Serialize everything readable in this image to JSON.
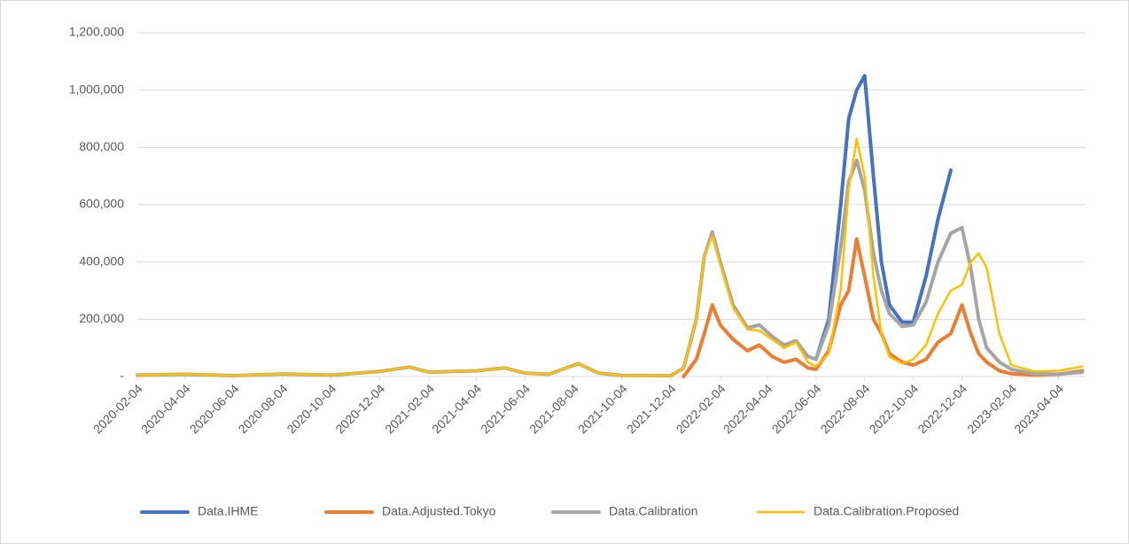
{
  "chart_data": {
    "type": "line",
    "x": [
      "2020-02-04",
      "2020-04-04",
      "2020-06-04",
      "2020-08-04",
      "2020-10-04",
      "2020-12-04",
      "2021-01-10",
      "2021-02-04",
      "2021-04-04",
      "2021-05-10",
      "2021-06-04",
      "2021-07-04",
      "2021-08-10",
      "2021-09-04",
      "2021-10-04",
      "2021-12-04",
      "2021-12-20",
      "2022-01-05",
      "2022-01-15",
      "2022-01-25",
      "2022-02-04",
      "2022-02-20",
      "2022-03-10",
      "2022-03-25",
      "2022-04-10",
      "2022-04-25",
      "2022-05-10",
      "2022-05-25",
      "2022-06-04",
      "2022-06-20",
      "2022-07-05",
      "2022-07-15",
      "2022-07-25",
      "2022-08-04",
      "2022-08-15",
      "2022-08-25",
      "2022-09-04",
      "2022-09-20",
      "2022-10-04",
      "2022-10-20",
      "2022-11-04",
      "2022-11-20",
      "2022-12-04",
      "2022-12-15",
      "2022-12-25",
      "2023-01-04",
      "2023-01-20",
      "2023-02-04",
      "2023-03-04",
      "2023-04-04",
      "2023-05-04"
    ],
    "series": [
      {
        "name": "Data.IHME",
        "color": "#4472c4",
        "width": 4,
        "values": [
          null,
          null,
          null,
          null,
          null,
          null,
          null,
          null,
          null,
          null,
          null,
          null,
          null,
          null,
          null,
          null,
          null,
          null,
          null,
          null,
          null,
          null,
          null,
          null,
          null,
          null,
          null,
          null,
          60000,
          200000,
          600000,
          900000,
          1000000,
          1050000,
          700000,
          400000,
          250000,
          190000,
          190000,
          350000,
          550000,
          720000,
          null,
          null,
          null,
          null,
          null,
          null,
          null,
          null,
          null
        ]
      },
      {
        "name": "Data.Adjusted.Tokyo",
        "color": "#ed7d31",
        "width": 4,
        "values": [
          null,
          null,
          null,
          null,
          null,
          null,
          null,
          null,
          null,
          null,
          null,
          null,
          null,
          null,
          null,
          null,
          0,
          60000,
          150000,
          250000,
          180000,
          130000,
          90000,
          110000,
          70000,
          50000,
          60000,
          30000,
          25000,
          90000,
          250000,
          300000,
          480000,
          350000,
          200000,
          150000,
          80000,
          50000,
          40000,
          60000,
          120000,
          150000,
          250000,
          150000,
          80000,
          50000,
          20000,
          10000,
          5000,
          8000,
          20000
        ]
      },
      {
        "name": "Data.Calibration",
        "color": "#a5a5a5",
        "width": 4,
        "values": [
          5000,
          8000,
          3000,
          9000,
          5000,
          18000,
          33000,
          15000,
          20000,
          30000,
          12000,
          8000,
          45000,
          12000,
          4000,
          3000,
          30000,
          200000,
          420000,
          505000,
          400000,
          250000,
          170000,
          180000,
          140000,
          110000,
          125000,
          70000,
          60000,
          180000,
          450000,
          680000,
          755000,
          650000,
          430000,
          300000,
          220000,
          175000,
          180000,
          260000,
          400000,
          500000,
          520000,
          380000,
          200000,
          100000,
          50000,
          25000,
          10000,
          8000,
          15000
        ]
      },
      {
        "name": "Data.Calibration.Proposed",
        "color": "#ffc000",
        "width": 2.5,
        "values": [
          5000,
          8000,
          3000,
          9000,
          5000,
          18000,
          33000,
          15000,
          20000,
          30000,
          12000,
          8000,
          45000,
          12000,
          4000,
          3000,
          30000,
          200000,
          420000,
          490000,
          390000,
          240000,
          165000,
          160000,
          130000,
          100000,
          120000,
          50000,
          35000,
          80000,
          300000,
          650000,
          830000,
          700000,
          350000,
          150000,
          70000,
          45000,
          60000,
          110000,
          220000,
          300000,
          320000,
          400000,
          430000,
          380000,
          150000,
          40000,
          18000,
          20000,
          35000
        ]
      }
    ],
    "xlim": [
      "2020-02-04",
      "2023-05-08"
    ],
    "xticks": [
      "2020-02-04",
      "2020-04-04",
      "2020-06-04",
      "2020-08-04",
      "2020-10-04",
      "2020-12-04",
      "2021-02-04",
      "2021-04-04",
      "2021-06-04",
      "2021-08-04",
      "2021-10-04",
      "2021-12-04",
      "2022-02-04",
      "2022-04-04",
      "2022-06-04",
      "2022-08-04",
      "2022-10-04",
      "2022-12-04",
      "2023-02-04",
      "2023-04-04"
    ],
    "ylim": [
      0,
      1200000
    ],
    "yticks": [
      {
        "value": 0,
        "label": "-"
      },
      {
        "value": 200000,
        "label": "200,000"
      },
      {
        "value": 400000,
        "label": "400,000"
      },
      {
        "value": 600000,
        "label": "600,000"
      },
      {
        "value": 800000,
        "label": "800,000"
      },
      {
        "value": 1000000,
        "label": "1,000,000"
      },
      {
        "value": 1200000,
        "label": "1,200,000"
      }
    ],
    "grid": true,
    "legend": "bottom"
  }
}
